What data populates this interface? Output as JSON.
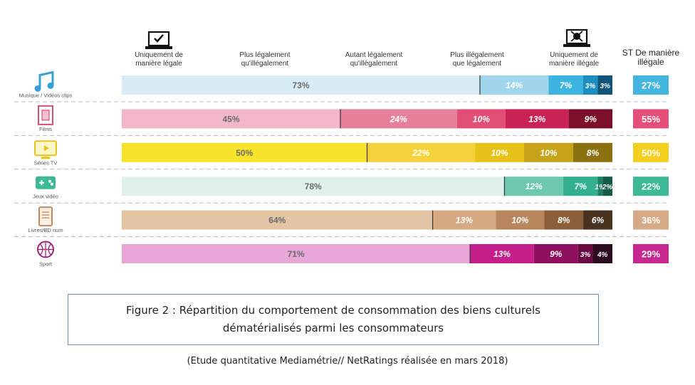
{
  "chart_data": {
    "type": "bar",
    "stacked": true,
    "orientation": "horizontal",
    "total_header": "ST De manière illégale",
    "columns": [
      "Uniquement de manière légale",
      "Plus légalement qu'illégalement",
      "Autant légalement qu'illégalement",
      "Plus illégalement que légalement",
      "Uniquement de manière illégale"
    ],
    "rows": [
      {
        "label": "Musique / Vidéos clips",
        "icon": "music-note-icon",
        "values": [
          73,
          14,
          7,
          3,
          3
        ],
        "value_labels": [
          "73%",
          "14%",
          "7%",
          "3%",
          "3%"
        ],
        "colors": [
          "#d7ecf5",
          "#9fd6ec",
          "#3bb4e0",
          "#1c8fc0",
          "#10547a"
        ],
        "total": "27%",
        "total_color": "#43b5df"
      },
      {
        "label": "Films",
        "icon": "film-strip-icon",
        "values": [
          45,
          24,
          10,
          13,
          9
        ],
        "value_labels": [
          "45%",
          "24%",
          "10%",
          "13%",
          "9%"
        ],
        "colors": [
          "#f2b8c8",
          "#e67f99",
          "#e24f76",
          "#c92355",
          "#7c0f2a"
        ],
        "total": "55%",
        "total_color": "#e64f79"
      },
      {
        "label": "Séries TV",
        "icon": "tv-screen-icon",
        "values": [
          50,
          22,
          10,
          10,
          8
        ],
        "value_labels": [
          "50%",
          "22%",
          "10%",
          "10%",
          "8%"
        ],
        "colors": [
          "#f7e42a",
          "#f5d23c",
          "#e8c218",
          "#c6a41a",
          "#8c7111"
        ],
        "total": "50%",
        "total_color": "#f5cf1f"
      },
      {
        "label": "Jeux vidéo",
        "icon": "gamepad-icon",
        "values": [
          78,
          12,
          7,
          1,
          2
        ],
        "value_labels": [
          "78%",
          "12%",
          "7%",
          "1%",
          "2%"
        ],
        "colors": [
          "#dff1ea",
          "#6cc9ad",
          "#33b08f",
          "#1d7f66",
          "#145a48"
        ],
        "total": "22%",
        "total_color": "#3eb896"
      },
      {
        "label": "Livres/BD num",
        "icon": "tablet-book-icon",
        "values": [
          64,
          13,
          10,
          8,
          6
        ],
        "value_labels": [
          "64%",
          "13%",
          "10%",
          "8%",
          "6%"
        ],
        "colors": [
          "#e3c4a4",
          "#d6a982",
          "#b8865c",
          "#8c5f3a",
          "#4a3220"
        ],
        "total": "36%",
        "total_color": "#d6aa86"
      },
      {
        "label": "Sport",
        "icon": "basketball-icon",
        "values": [
          71,
          13,
          9,
          3,
          4
        ],
        "value_labels": [
          "71%",
          "13%",
          "9%",
          "3%",
          "4%"
        ],
        "colors": [
          "#e7a6d5",
          "#c51d8a",
          "#8e0f5e",
          "#6a0a42",
          "#2d0a1f"
        ],
        "total": "29%",
        "total_color": "#c7288f"
      }
    ]
  },
  "caption": {
    "title": "Figure 2 : Répartition du comportement de consommation des biens culturels dématérialisés parmi les consommateurs",
    "source": "(Etude quantitative Mediamétrie// NetRatings réalisée en mars 2018)"
  },
  "icons": {
    "legal": "laptop-checkmark-icon",
    "illegal": "laptop-pirate-icon"
  }
}
